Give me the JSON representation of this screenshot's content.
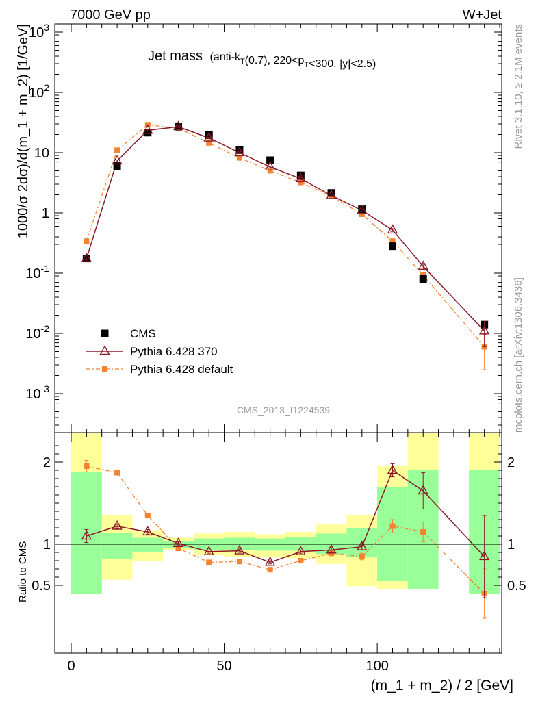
{
  "header": {
    "left": "7000 GeV pp",
    "right": "W+Jet"
  },
  "title": {
    "main": "Jet mass",
    "detail": "(anti-kT(0.7), 220<pT<300, |y|<2.5)"
  },
  "side_labels": {
    "rivet": "Rivet 3.1.10, ≥ 2.1M events",
    "mcplots": "mcplots.cern.ch [arXiv:1306.3436]"
  },
  "analysis_label": "CMS_2013_I1224539",
  "colors": {
    "cms": "#000000",
    "py370": "#8b1a28",
    "pydef": "#f5822e",
    "band_inner": "#99ff99",
    "band_outer": "#ffff99"
  },
  "chart_data": [
    {
      "type": "scatter",
      "panel": "main",
      "ylabel": "1000/σ 2dσ)/d(m_1 + m_2) [1/GeV]",
      "yscale": "log",
      "ylim": [
        0.0004,
        1300
      ],
      "xlim": [
        -5,
        141
      ],
      "yticks_major": [
        {
          "v": 0.001,
          "label": "10",
          "exp": "-3"
        },
        {
          "v": 0.01,
          "label": "10",
          "exp": "-2"
        },
        {
          "v": 0.1,
          "label": "10",
          "exp": "-1"
        },
        {
          "v": 1,
          "label": "1",
          "exp": ""
        },
        {
          "v": 10,
          "label": "10",
          "exp": ""
        },
        {
          "v": 100,
          "label": "10",
          "exp": "2"
        },
        {
          "v": 1000,
          "label": "10",
          "exp": "3"
        }
      ],
      "legend": {
        "placement": "lower-left",
        "entries": [
          "CMS",
          "Pythia 6.428 370",
          "Pythia 6.428 default"
        ]
      },
      "series": [
        {
          "name": "CMS",
          "x": [
            5,
            15,
            25,
            35,
            45,
            55,
            65,
            75,
            85,
            95,
            105,
            115,
            135
          ],
          "y": [
            0.175,
            6.0,
            21.5,
            27.0,
            19.5,
            11.0,
            7.5,
            4.2,
            2.15,
            1.15,
            0.28,
            0.08,
            0.014
          ]
        },
        {
          "name": "Pythia 6.428 370",
          "x": [
            5,
            15,
            25,
            35,
            45,
            55,
            65,
            75,
            85,
            95,
            105,
            115,
            135
          ],
          "y": [
            0.175,
            7.3,
            23.5,
            27.0,
            17.5,
            10.0,
            5.8,
            3.7,
            1.95,
            1.1,
            0.52,
            0.13,
            0.011
          ],
          "err": [
            0.01,
            0.3,
            0.8,
            0.8,
            0.5,
            0.3,
            0.2,
            0.15,
            0.08,
            0.05,
            0.03,
            0.015,
            0.005
          ]
        },
        {
          "name": "Pythia 6.428 default",
          "x": [
            5,
            15,
            25,
            35,
            45,
            55,
            65,
            75,
            85,
            95,
            105,
            115,
            135
          ],
          "y": [
            0.34,
            11.0,
            29.0,
            25.5,
            14.5,
            8.2,
            5.0,
            3.2,
            1.9,
            0.95,
            0.34,
            0.093,
            0.006
          ],
          "err": [
            0.02,
            0.4,
            1.0,
            0.8,
            0.4,
            0.25,
            0.15,
            0.1,
            0.07,
            0.04,
            0.02,
            0.01,
            0.0035
          ]
        }
      ]
    },
    {
      "type": "line",
      "panel": "ratio",
      "ylabel": "Ratio to CMS",
      "xlabel": "(m_1 + m_2) / 2 [GeV]",
      "ylim": [
        0.42,
        2.35
      ],
      "xlim": [
        -5,
        141
      ],
      "yticks_major": [
        {
          "v": 0.5,
          "label": "0.5"
        },
        {
          "v": 1,
          "label": "1"
        },
        {
          "v": 2,
          "label": "2"
        }
      ],
      "xticks_major": [
        {
          "v": 0,
          "label": "0"
        },
        {
          "v": 50,
          "label": "50"
        },
        {
          "v": 100,
          "label": "100"
        }
      ],
      "bands": {
        "edges": [
          0,
          10,
          20,
          30,
          40,
          50,
          60,
          70,
          80,
          90,
          100,
          110,
          120,
          130,
          140
        ],
        "outer_lo": [
          0.4,
          0.57,
          0.8,
          0.93,
          0.87,
          0.85,
          0.84,
          0.83,
          0.76,
          0.49,
          0.45,
          0.45,
          null,
          0.4
        ],
        "outer_hi": [
          2.4,
          1.35,
          1.17,
          1.08,
          1.13,
          1.15,
          1.12,
          1.15,
          1.24,
          1.35,
          1.96,
          2.4,
          null,
          2.4
        ],
        "inner_lo": [
          0.4,
          0.82,
          0.9,
          0.95,
          0.93,
          0.93,
          0.92,
          0.92,
          0.88,
          0.84,
          0.55,
          0.45,
          null,
          0.4
        ],
        "inner_hi": [
          1.88,
          1.14,
          1.08,
          1.04,
          1.07,
          1.08,
          1.07,
          1.09,
          1.13,
          1.2,
          1.7,
          1.9,
          null,
          1.9
        ]
      },
      "series": [
        {
          "name": "Pythia 6.428 370",
          "x": [
            5,
            15,
            25,
            35,
            45,
            55,
            65,
            75,
            85,
            95,
            105,
            115,
            135
          ],
          "y": [
            1.1,
            1.22,
            1.15,
            1.01,
            0.91,
            0.92,
            0.78,
            0.91,
            0.93,
            0.97,
            1.9,
            1.65,
            0.85
          ],
          "err": [
            0.08,
            0.03,
            0.03,
            0.02,
            0.02,
            0.02,
            0.02,
            0.02,
            0.03,
            0.04,
            0.08,
            0.22,
            0.5
          ]
        },
        {
          "name": "Pythia 6.428 default",
          "x": [
            5,
            15,
            25,
            35,
            45,
            55,
            65,
            75,
            85,
            95,
            105,
            115,
            135
          ],
          "y": [
            1.95,
            1.87,
            1.35,
            0.95,
            0.78,
            0.79,
            0.69,
            0.8,
            0.89,
            0.85,
            1.22,
            1.15,
            0.4
          ],
          "err": [
            0.07,
            0.02,
            0.03,
            0.02,
            0.02,
            0.02,
            0.02,
            0.02,
            0.03,
            0.04,
            0.08,
            0.12,
            0.3
          ]
        }
      ]
    }
  ]
}
